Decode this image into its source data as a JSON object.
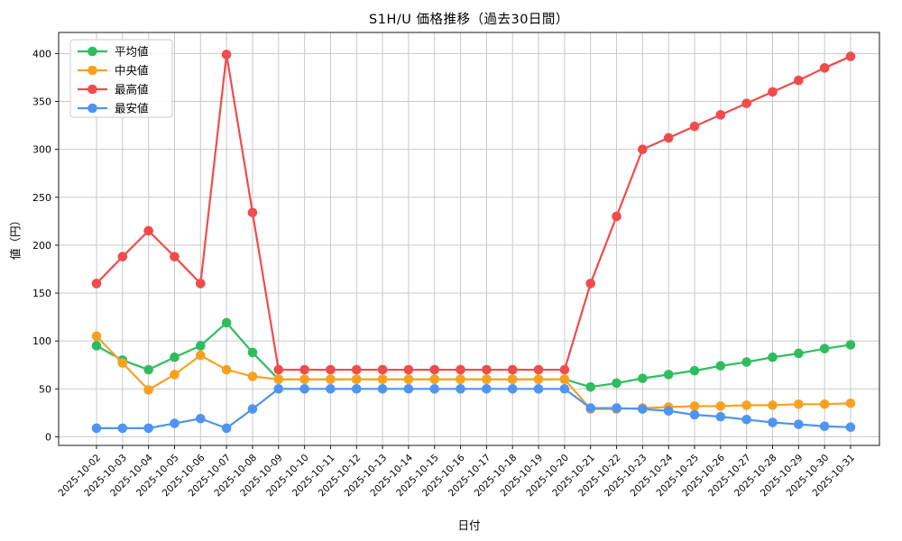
{
  "chart_data": {
    "type": "line",
    "title": "S1H/U 価格推移（過去30日間）",
    "xlabel": "日付",
    "ylabel": "値（円）",
    "grid": true,
    "legend_position": "upper left",
    "ylim": [
      -9,
      422
    ],
    "yticks": [
      0,
      50,
      100,
      150,
      200,
      250,
      300,
      350,
      400
    ],
    "categories": [
      "2025-10-02",
      "2025-10-03",
      "2025-10-04",
      "2025-10-05",
      "2025-10-06",
      "2025-10-07",
      "2025-10-08",
      "2025-10-09",
      "2025-10-10",
      "2025-10-11",
      "2025-10-12",
      "2025-10-13",
      "2025-10-14",
      "2025-10-15",
      "2025-10-16",
      "2025-10-17",
      "2025-10-18",
      "2025-10-19",
      "2025-10-20",
      "2025-10-21",
      "2025-10-22",
      "2025-10-23",
      "2025-10-24",
      "2025-10-25",
      "2025-10-26",
      "2025-10-27",
      "2025-10-28",
      "2025-10-29",
      "2025-10-30",
      "2025-10-31"
    ],
    "series": [
      {
        "key": "average",
        "name": "平均値",
        "color": "#2ebd5e",
        "values": [
          95,
          80,
          70,
          83,
          95,
          119,
          88,
          60,
          60,
          60,
          60,
          60,
          60,
          60,
          60,
          60,
          60,
          60,
          60,
          52,
          56,
          61,
          65,
          69,
          74,
          78,
          83,
          87,
          92,
          96
        ]
      },
      {
        "key": "median",
        "name": "中央値",
        "color": "#f9a11f",
        "values": [
          105,
          77,
          49,
          65,
          85,
          70,
          63,
          60,
          60,
          60,
          60,
          60,
          60,
          60,
          60,
          60,
          60,
          60,
          60,
          29,
          29,
          30,
          31,
          32,
          32,
          33,
          33,
          34,
          34,
          35
        ]
      },
      {
        "key": "highest",
        "name": "最高値",
        "color": "#f14b4b",
        "values": [
          160,
          188,
          215,
          188,
          160,
          399,
          234,
          70,
          70,
          70,
          70,
          70,
          70,
          70,
          70,
          70,
          70,
          70,
          70,
          160,
          230,
          300,
          312,
          324,
          336,
          348,
          360,
          372,
          385,
          397
        ]
      },
      {
        "key": "lowest",
        "name": "最安値",
        "color": "#4f94f3",
        "values": [
          9,
          9,
          9,
          14,
          19,
          9,
          29,
          50,
          50,
          50,
          50,
          50,
          50,
          50,
          50,
          50,
          50,
          50,
          50,
          30,
          30,
          29,
          27,
          23,
          21,
          18,
          15,
          13,
          11,
          10
        ]
      }
    ],
    "colors": {
      "grid": "#c9c9c9",
      "spine": "#1a1a1a",
      "tick_text": "#000000",
      "legend_border": "#cccccc",
      "legend_bg": "#ffffff"
    }
  }
}
